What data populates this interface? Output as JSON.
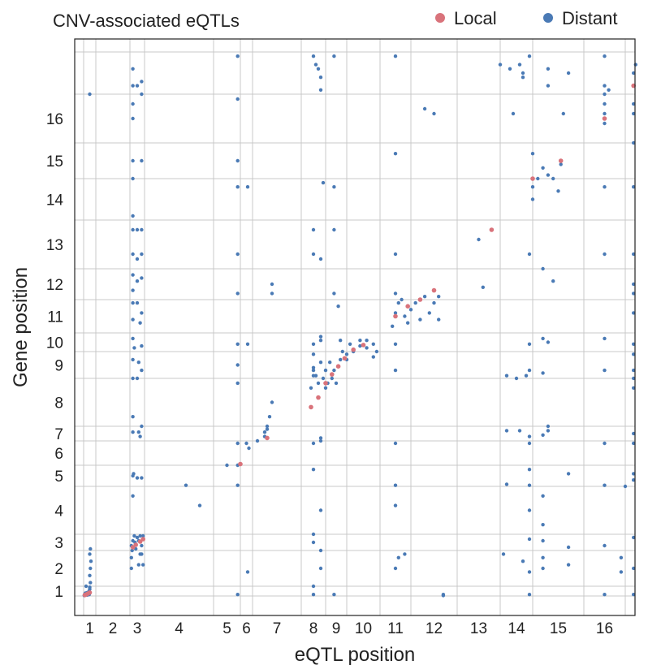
{
  "chart_data": {
    "type": "scatter",
    "title": "CNV-associated eQTLs",
    "xlabel": "eQTL position",
    "ylabel": "Gene position",
    "x_ticks": [
      "1",
      "2",
      "3",
      "4",
      "5",
      "6",
      "7",
      "8",
      "9",
      "10",
      "11",
      "12",
      "13",
      "14",
      "15",
      "16"
    ],
    "y_ticks": [
      "1",
      "2",
      "3",
      "4",
      "5",
      "6",
      "7",
      "8",
      "9",
      "10",
      "11",
      "12",
      "13",
      "14",
      "15",
      "16"
    ],
    "grid": true,
    "legend_position": "top-right",
    "colors": {
      "Local": "#d9737b",
      "Distant": "#4a7ab5"
    },
    "series": [
      {
        "name": "Local",
        "points": [
          [
            0.1,
            0.1
          ],
          [
            0.2,
            0.15
          ],
          [
            0.35,
            0.25
          ],
          [
            0.5,
            0.35
          ],
          [
            2.2,
            2.2
          ],
          [
            2.4,
            2.35
          ],
          [
            2.7,
            2.55
          ],
          [
            2.9,
            2.7
          ],
          [
            5.0,
            5.05
          ],
          [
            6.3,
            6.2
          ],
          [
            7.4,
            7.4
          ],
          [
            7.7,
            7.6
          ],
          [
            8.0,
            7.9
          ],
          [
            8.3,
            8.15
          ],
          [
            8.6,
            8.45
          ],
          [
            8.9,
            8.75
          ],
          [
            9.2,
            9.1
          ],
          [
            9.5,
            9.35
          ],
          [
            10.5,
            10.5
          ],
          [
            10.9,
            10.8
          ],
          [
            11.2,
            11.0
          ],
          [
            11.5,
            11.3
          ],
          [
            12.8,
            12.8
          ],
          [
            14.0,
            14.0
          ],
          [
            14.55,
            14.5
          ],
          [
            15.5,
            15.5
          ],
          [
            16.2,
            16.2
          ]
        ]
      },
      {
        "name": "Distant",
        "points": [
          [
            0.05,
            0.05
          ],
          [
            0.1,
            0.2
          ],
          [
            0.15,
            0.3
          ],
          [
            0.2,
            0.25
          ],
          [
            0.3,
            0.1
          ],
          [
            0.4,
            0.3
          ],
          [
            0.45,
            0.5
          ],
          [
            0.5,
            0.7
          ],
          [
            0.5,
            0.9
          ],
          [
            0.55,
            1.1
          ],
          [
            0.5,
            1.3
          ],
          [
            0.55,
            1.5
          ],
          [
            0.6,
            1.7
          ],
          [
            0.5,
            1.9
          ],
          [
            0.55,
            2.1
          ],
          [
            0.45,
            0.15
          ],
          [
            0.3,
            0.35
          ],
          [
            0.2,
            1.0
          ],
          [
            0.5,
            16.0
          ],
          [
            2.1,
            1.5
          ],
          [
            2.1,
            1.8
          ],
          [
            2.15,
            2.0
          ],
          [
            2.1,
            2.3
          ],
          [
            2.2,
            2.6
          ],
          [
            2.3,
            2.9
          ],
          [
            2.35,
            2.5
          ],
          [
            2.5,
            2.8
          ],
          [
            2.6,
            2.6
          ],
          [
            2.7,
            2.9
          ],
          [
            2.8,
            2.3
          ],
          [
            2.9,
            2.9
          ],
          [
            2.8,
            1.9
          ],
          [
            2.9,
            1.6
          ],
          [
            2.6,
            1.6
          ],
          [
            2.7,
            1.9
          ],
          [
            2.4,
            2.1
          ],
          [
            2.2,
            3.8
          ],
          [
            2.2,
            4.5
          ],
          [
            2.5,
            4.4
          ],
          [
            2.8,
            4.4
          ],
          [
            2.25,
            4.6
          ],
          [
            2.2,
            6.6
          ],
          [
            2.2,
            7.2
          ],
          [
            2.6,
            6.6
          ],
          [
            2.8,
            7.0
          ],
          [
            2.7,
            6.3
          ],
          [
            2.2,
            8.0
          ],
          [
            2.5,
            8.0
          ],
          [
            2.8,
            8.3
          ],
          [
            2.6,
            8.6
          ],
          [
            2.2,
            8.7
          ],
          [
            2.3,
            9.2
          ],
          [
            2.8,
            9.3
          ],
          [
            2.2,
            9.7
          ],
          [
            2.2,
            10.4
          ],
          [
            2.2,
            10.9
          ],
          [
            2.5,
            10.9
          ],
          [
            2.8,
            10.6
          ],
          [
            2.7,
            10.3
          ],
          [
            2.2,
            11.3
          ],
          [
            2.5,
            11.6
          ],
          [
            2.8,
            11.7
          ],
          [
            2.2,
            11.8
          ],
          [
            2.2,
            12.3
          ],
          [
            2.5,
            12.2
          ],
          [
            2.8,
            12.3
          ],
          [
            2.2,
            12.8
          ],
          [
            2.5,
            12.8
          ],
          [
            2.8,
            12.8
          ],
          [
            2.2,
            13.1
          ],
          [
            2.2,
            14.0
          ],
          [
            2.2,
            14.5
          ],
          [
            2.8,
            14.5
          ],
          [
            2.2,
            15.5
          ],
          [
            2.2,
            15.8
          ],
          [
            2.2,
            16.2
          ],
          [
            2.5,
            16.2
          ],
          [
            2.8,
            16.0
          ],
          [
            2.8,
            16.3
          ],
          [
            2.2,
            16.6
          ],
          [
            3.6,
            4.05
          ],
          [
            3.8,
            3.6
          ],
          [
            4.9,
            0.15
          ],
          [
            4.9,
            4.05
          ],
          [
            4.9,
            5.0
          ],
          [
            4.9,
            5.9
          ],
          [
            4.9,
            7.9
          ],
          [
            4.9,
            8.5
          ],
          [
            4.9,
            9.4
          ],
          [
            4.9,
            11.2
          ],
          [
            4.9,
            12.3
          ],
          [
            4.9,
            13.8
          ],
          [
            4.9,
            14.5
          ],
          [
            4.9,
            15.9
          ],
          [
            4.9,
            16.9
          ],
          [
            4.5,
            5.0
          ],
          [
            5.6,
            1.4
          ],
          [
            5.5,
            5.9
          ],
          [
            5.7,
            5.7
          ],
          [
            5.6,
            9.4
          ],
          [
            5.6,
            13.8
          ],
          [
            6.1,
            6.0
          ],
          [
            6.25,
            6.3
          ],
          [
            6.3,
            6.8
          ],
          [
            6.35,
            7.2
          ],
          [
            6.4,
            7.5
          ],
          [
            6.3,
            7.0
          ],
          [
            6.25,
            6.6
          ],
          [
            6.4,
            11.2
          ],
          [
            6.4,
            11.5
          ],
          [
            7.4,
            7.8
          ],
          [
            7.6,
            8.1
          ],
          [
            7.7,
            7.9
          ],
          [
            7.9,
            8.0
          ],
          [
            8.0,
            8.3
          ],
          [
            8.1,
            7.9
          ],
          [
            7.5,
            8.4
          ],
          [
            7.8,
            8.6
          ],
          [
            8.2,
            8.6
          ],
          [
            8.0,
            7.8
          ],
          [
            8.3,
            8.0
          ],
          [
            8.5,
            7.9
          ],
          [
            8.4,
            8.3
          ],
          [
            7.5,
            8.1
          ],
          [
            8.7,
            8.7
          ],
          [
            8.8,
            9.0
          ],
          [
            9.0,
            8.9
          ],
          [
            9.2,
            9.0
          ],
          [
            9.4,
            9.3
          ],
          [
            9.6,
            9.2
          ],
          [
            9.8,
            9.4
          ],
          [
            9.1,
            9.4
          ],
          [
            9.4,
            9.6
          ],
          [
            8.7,
            9.6
          ],
          [
            9.6,
            9.6
          ],
          [
            9.9,
            9.0
          ],
          [
            9.0,
            8.7
          ],
          [
            9.8,
            8.8
          ],
          [
            7.5,
            0.15
          ],
          [
            7.5,
            1.0
          ],
          [
            7.5,
            2.5
          ],
          [
            7.5,
            3.0
          ],
          [
            7.5,
            4.8
          ],
          [
            7.5,
            5.9
          ],
          [
            7.5,
            8.3
          ],
          [
            7.5,
            8.9
          ],
          [
            7.5,
            9.4
          ],
          [
            7.5,
            12.3
          ],
          [
            7.5,
            12.8
          ],
          [
            7.5,
            16.9
          ],
          [
            7.6,
            16.7
          ],
          [
            7.8,
            1.5
          ],
          [
            7.8,
            2.0
          ],
          [
            7.8,
            3.5
          ],
          [
            7.8,
            6.0
          ],
          [
            7.8,
            6.2
          ],
          [
            7.8,
            9.6
          ],
          [
            7.8,
            9.8
          ],
          [
            7.8,
            12.2
          ],
          [
            7.8,
            16.1
          ],
          [
            7.8,
            16.4
          ],
          [
            7.7,
            16.6
          ],
          [
            7.9,
            13.9
          ],
          [
            8.4,
            11.2
          ],
          [
            8.6,
            10.8
          ],
          [
            8.4,
            13.8
          ],
          [
            8.4,
            16.9
          ],
          [
            8.4,
            12.8
          ],
          [
            8.4,
            0.15
          ],
          [
            10.4,
            10.2
          ],
          [
            10.5,
            10.6
          ],
          [
            10.6,
            10.9
          ],
          [
            10.7,
            11.0
          ],
          [
            10.8,
            10.5
          ],
          [
            10.9,
            10.3
          ],
          [
            11.0,
            10.7
          ],
          [
            11.1,
            10.9
          ],
          [
            11.2,
            10.4
          ],
          [
            11.3,
            11.1
          ],
          [
            11.4,
            10.6
          ],
          [
            11.5,
            10.9
          ],
          [
            11.6,
            10.4
          ],
          [
            10.5,
            11.2
          ],
          [
            11.6,
            11.1
          ],
          [
            10.5,
            1.5
          ],
          [
            10.6,
            1.8
          ],
          [
            10.8,
            1.9
          ],
          [
            10.5,
            3.6
          ],
          [
            10.5,
            4.05
          ],
          [
            10.5,
            5.9
          ],
          [
            10.5,
            8.3
          ],
          [
            10.5,
            9.4
          ],
          [
            10.5,
            12.3
          ],
          [
            10.5,
            14.7
          ],
          [
            10.5,
            16.9
          ],
          [
            11.3,
            15.7
          ],
          [
            11.5,
            15.6
          ],
          [
            11.7,
            0.05
          ],
          [
            11.7,
            0.15
          ],
          [
            12.5,
            12.6
          ],
          [
            12.6,
            11.4
          ],
          [
            13.0,
            16.7
          ],
          [
            13.3,
            16.6
          ],
          [
            13.6,
            16.7
          ],
          [
            13.7,
            16.5
          ],
          [
            13.4,
            15.6
          ],
          [
            13.1,
            1.9
          ],
          [
            13.2,
            4.1
          ],
          [
            13.2,
            8.1
          ],
          [
            13.5,
            8.0
          ],
          [
            13.2,
            6.7
          ],
          [
            13.6,
            6.7
          ],
          [
            13.7,
            1.7
          ],
          [
            13.7,
            16.4
          ],
          [
            13.8,
            8.1
          ],
          [
            13.9,
            6.3
          ],
          [
            14.0,
            14.7
          ],
          [
            14.0,
            13.5
          ],
          [
            14.1,
            14.0
          ],
          [
            14.2,
            14.3
          ],
          [
            14.3,
            14.1
          ],
          [
            14.0,
            13.8
          ],
          [
            14.4,
            14.0
          ],
          [
            14.55,
            14.4
          ],
          [
            13.9,
            0.15
          ],
          [
            13.9,
            1.4
          ],
          [
            13.9,
            2.7
          ],
          [
            13.9,
            3.5
          ],
          [
            13.9,
            4.05
          ],
          [
            13.9,
            4.8
          ],
          [
            13.9,
            5.9
          ],
          [
            13.9,
            8.3
          ],
          [
            13.9,
            9.4
          ],
          [
            13.9,
            12.3
          ],
          [
            13.9,
            16.9
          ],
          [
            14.3,
            16.6
          ],
          [
            14.3,
            16.2
          ],
          [
            14.2,
            12.0
          ],
          [
            14.2,
            9.7
          ],
          [
            14.3,
            9.5
          ],
          [
            14.2,
            8.2
          ],
          [
            14.3,
            7.0
          ],
          [
            14.3,
            6.7
          ],
          [
            14.2,
            6.4
          ],
          [
            14.2,
            3.8
          ],
          [
            14.2,
            3.2
          ],
          [
            14.2,
            2.6
          ],
          [
            14.2,
            1.8
          ],
          [
            14.2,
            1.5
          ],
          [
            14.4,
            11.6
          ],
          [
            14.7,
            2.2
          ],
          [
            14.7,
            1.6
          ],
          [
            14.7,
            4.6
          ],
          [
            14.5,
            13.7
          ],
          [
            14.6,
            15.6
          ],
          [
            14.7,
            16.5
          ],
          [
            15.5,
            15.6
          ],
          [
            15.5,
            15.8
          ],
          [
            15.5,
            16.0
          ],
          [
            15.5,
            16.2
          ],
          [
            15.6,
            16.1
          ],
          [
            15.5,
            16.9
          ],
          [
            15.5,
            15.4
          ],
          [
            15.5,
            0.15
          ],
          [
            15.5,
            2.3
          ],
          [
            15.5,
            4.05
          ],
          [
            15.5,
            5.9
          ],
          [
            15.5,
            8.3
          ],
          [
            15.5,
            9.7
          ],
          [
            15.5,
            12.3
          ],
          [
            15.5,
            13.8
          ],
          [
            16.2,
            16.5
          ],
          [
            16.2,
            16.2
          ],
          [
            16.2,
            15.8
          ],
          [
            16.2,
            15.6
          ],
          [
            16.2,
            15.0
          ],
          [
            16.25,
            16.7
          ],
          [
            16.2,
            0.15
          ],
          [
            16.2,
            1.5
          ],
          [
            16.2,
            2.8
          ],
          [
            16.2,
            4.3
          ],
          [
            16.2,
            4.6
          ],
          [
            16.2,
            5.9
          ],
          [
            16.2,
            6.5
          ],
          [
            16.2,
            7.8
          ],
          [
            16.2,
            8.0
          ],
          [
            16.2,
            8.3
          ],
          [
            16.2,
            8.9
          ],
          [
            16.2,
            9.4
          ],
          [
            16.2,
            10.6
          ],
          [
            16.2,
            11.2
          ],
          [
            16.2,
            11.5
          ],
          [
            16.2,
            12.3
          ],
          [
            16.2,
            13.8
          ],
          [
            16.0,
            4.0
          ],
          [
            15.9,
            1.8
          ],
          [
            15.9,
            1.4
          ]
        ]
      }
    ]
  }
}
